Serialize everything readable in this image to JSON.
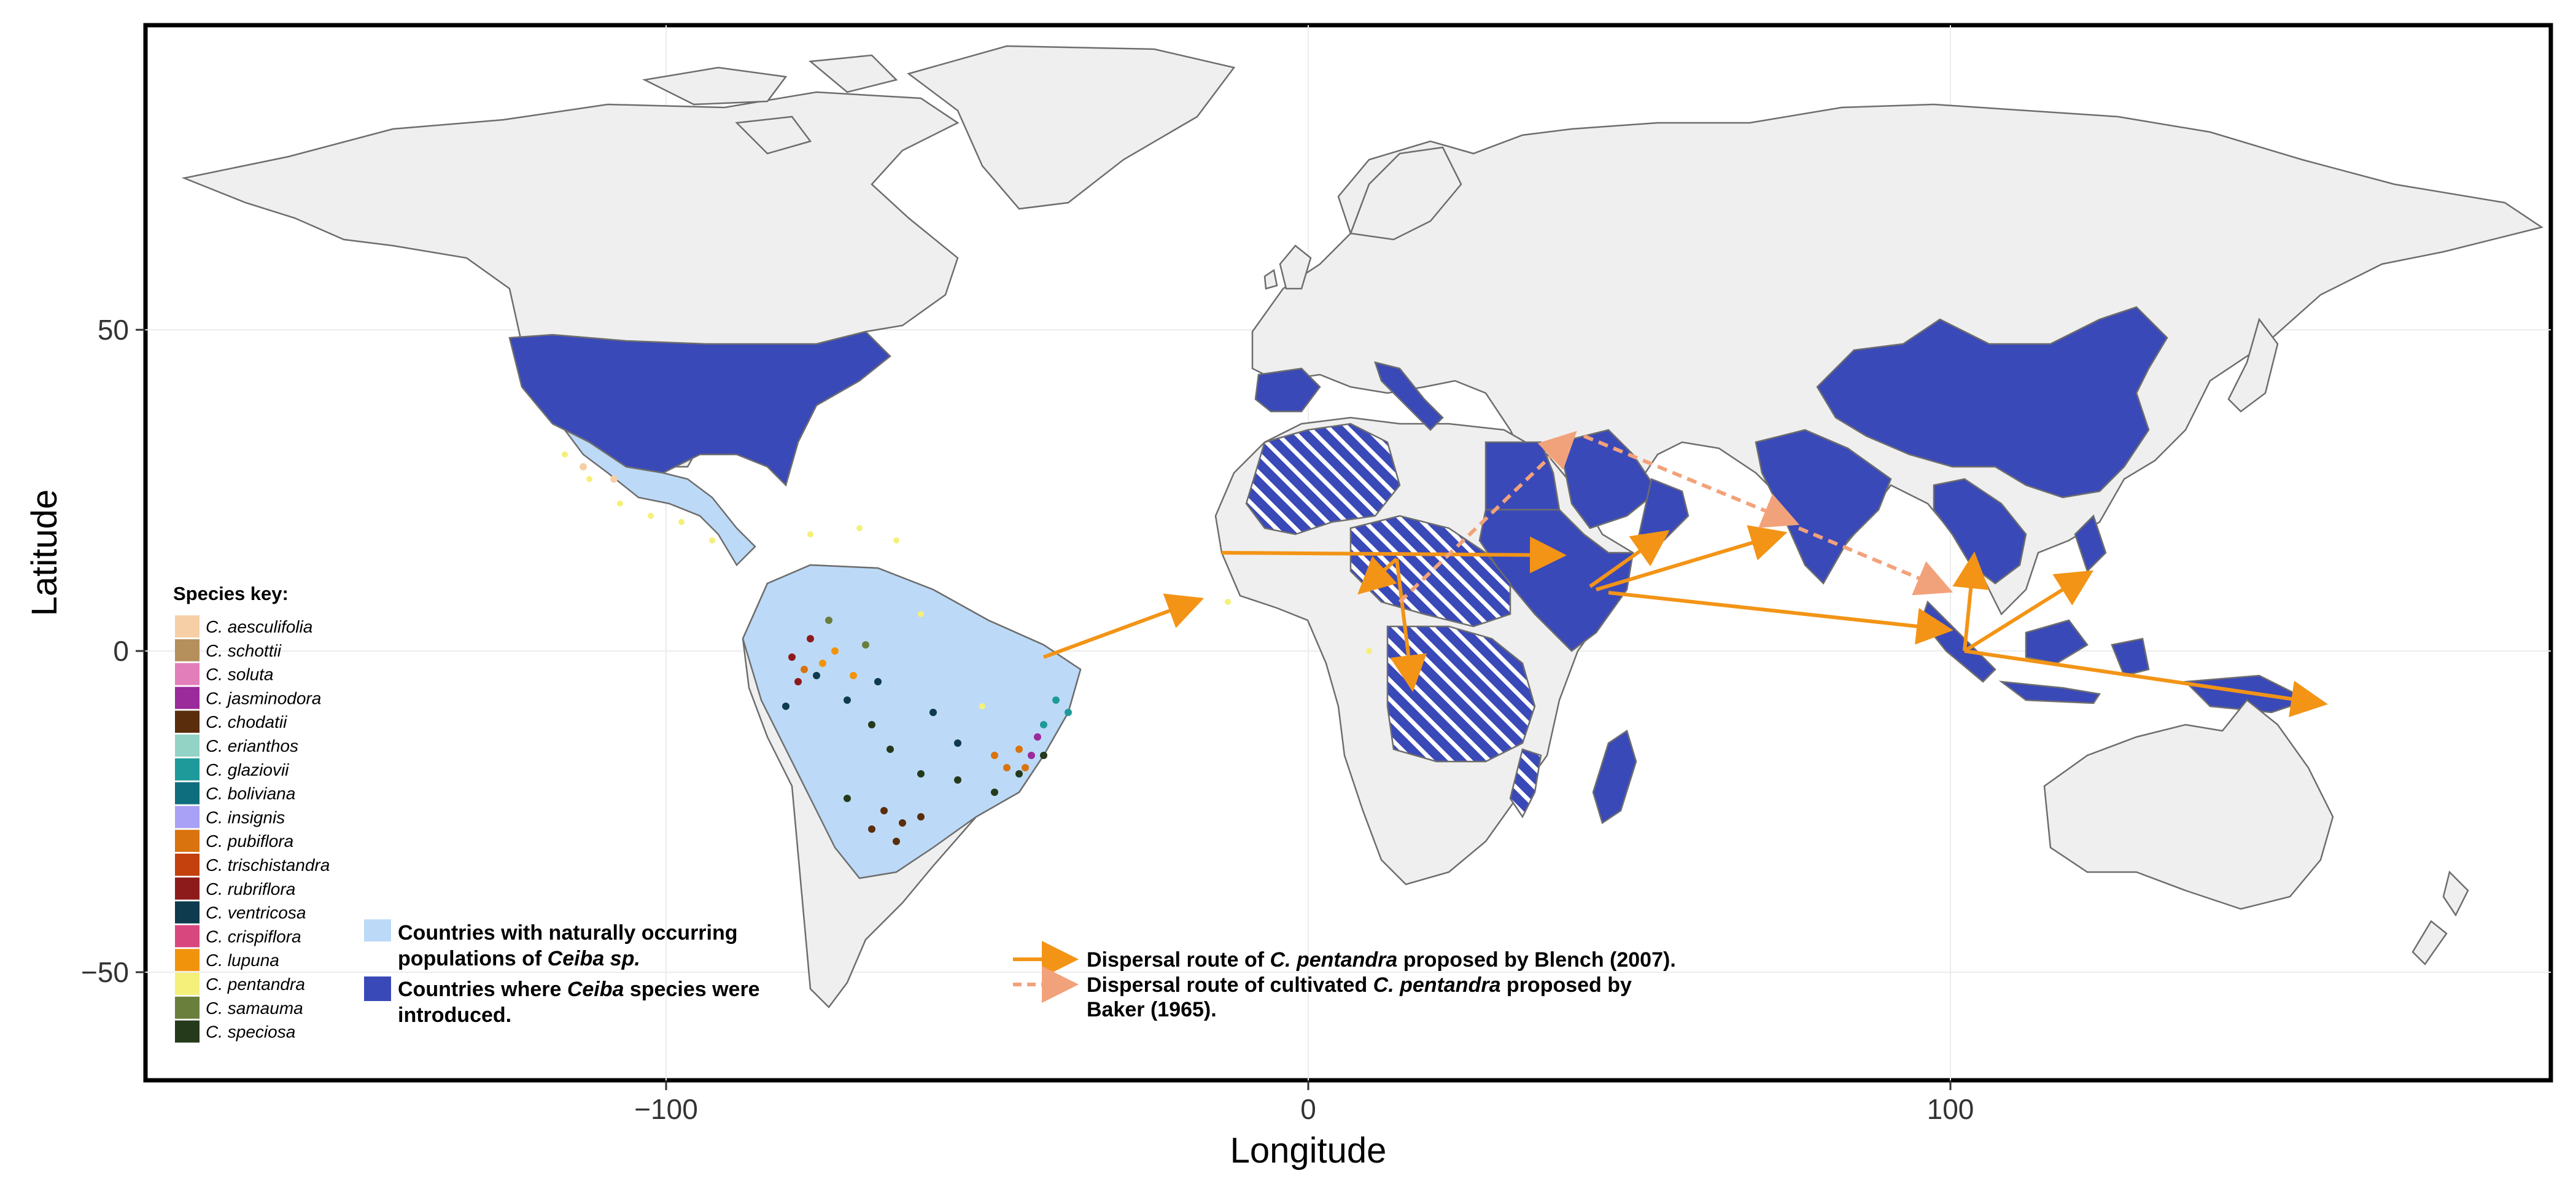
{
  "axes": {
    "xlabel": "Longitude",
    "ylabel": "Latitude",
    "x_ticks": [
      "−100",
      "0",
      "100"
    ],
    "y_ticks": [
      "50",
      "0",
      "−50"
    ]
  },
  "species_key": {
    "title": "Species key:",
    "items": [
      {
        "name": "C. aesculifolia",
        "color": "#f6cfa6"
      },
      {
        "name": "C. schottii",
        "color": "#b58f5c"
      },
      {
        "name": "C. soluta",
        "color": "#e27fba"
      },
      {
        "name": "C. jasminodora",
        "color": "#9b2a9a"
      },
      {
        "name": "C. chodatii",
        "color": "#5a2d0c"
      },
      {
        "name": "C. erianthos",
        "color": "#93d3c6"
      },
      {
        "name": "C. glaziovii",
        "color": "#1f9a9a"
      },
      {
        "name": "C. boliviana",
        "color": "#0f6e7e"
      },
      {
        "name": "C. insignis",
        "color": "#a9a1f5"
      },
      {
        "name": "C. pubiflora",
        "color": "#d9730e"
      },
      {
        "name": "C. trischistandra",
        "color": "#c4400d"
      },
      {
        "name": "C. rubriflora",
        "color": "#8e1b1b"
      },
      {
        "name": "C. ventricosa",
        "color": "#0e3b4e"
      },
      {
        "name": "C. crispiflora",
        "color": "#d8477e"
      },
      {
        "name": "C. lupuna",
        "color": "#f1940c"
      },
      {
        "name": "C. pentandra",
        "color": "#f4f07a"
      },
      {
        "name": "C. samauma",
        "color": "#6a7f3c"
      },
      {
        "name": "C. speciosa",
        "color": "#253a1b"
      }
    ]
  },
  "country_legend": {
    "native_line1": "Countries with naturally occurring",
    "native_line2_pre": "populations of ",
    "native_line2_italic": "Ceiba sp.",
    "native_color": "#bcdaf7",
    "intro_line1_pre": "Countries where ",
    "intro_line1_italic": "Ceiba",
    "intro_line1_post": " species were",
    "intro_line2": "introduced.",
    "intro_color": "#3a49b8"
  },
  "route_legend": {
    "blench_pre": "Dispersal route of ",
    "blench_italic": "C. pentandra",
    "blench_post": " proposed by Blench (2007).",
    "baker_line1_pre": "Dispersal route of cultivated ",
    "baker_line1_italic": "C. pentandra",
    "baker_line1_post": " proposed by",
    "baker_line2": "Baker (1965).",
    "blench_color": "#f39416",
    "baker_color": "#f2a27a"
  },
  "map_data": {
    "projection": "equirectangular",
    "x_range": [
      -190,
      190
    ],
    "y_range": [
      -67,
      97
    ],
    "introduced_regions": [
      "United States",
      "Spain",
      "Italy",
      "Egypt",
      "Saudi Arabia",
      "Oman",
      "India",
      "China",
      "Southeast Asia",
      "Indonesia",
      "Philippines",
      "Madagascar",
      "Sudan",
      "Ethiopia",
      "Somalia"
    ],
    "blench_routes": [
      {
        "from": [
          -41,
          -1
        ],
        "to": [
          -15,
          8
        ]
      },
      {
        "from": [
          -13,
          15
        ],
        "to": [
          38,
          14
        ]
      },
      {
        "from": [
          14,
          14
        ],
        "to": [
          16,
          -7
        ]
      },
      {
        "from": [
          14,
          14
        ],
        "to": [
          6,
          10
        ]
      },
      {
        "from": [
          44,
          10
        ],
        "to": [
          55,
          18
        ]
      },
      {
        "from": [
          48,
          9
        ],
        "to": [
          73,
          18
        ]
      },
      {
        "from": [
          48,
          9
        ],
        "to": [
          97,
          5
        ]
      },
      {
        "from": [
          102,
          1
        ],
        "to": [
          104,
          14
        ]
      },
      {
        "from": [
          102,
          1
        ],
        "to": [
          121,
          12
        ]
      },
      {
        "from": [
          102,
          1
        ],
        "to": [
          157,
          -8
        ]
      }
    ],
    "baker_routes": [
      {
        "from": [
          14,
          8
        ],
        "to": [
          41,
          34
        ]
      },
      {
        "from": [
          41,
          34
        ],
        "to": [
          73,
          20
        ]
      },
      {
        "from": [
          73,
          20
        ],
        "to": [
          98,
          9
        ]
      }
    ]
  }
}
